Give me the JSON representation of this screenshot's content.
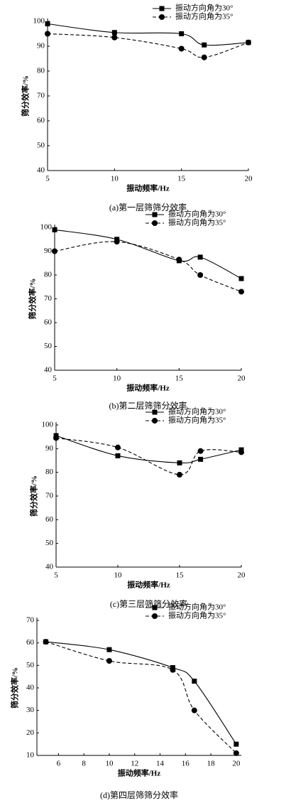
{
  "chart_data": [
    {
      "type": "line",
      "caption": "(a)第一层筛筛分效率",
      "xlabel": "振动频率/Hz",
      "ylabel": "筛分效率/%",
      "x": [
        5,
        10,
        15,
        16.7,
        20
      ],
      "xlim": [
        5,
        20
      ],
      "xticks": [
        5,
        10,
        15,
        20
      ],
      "ylim": [
        40,
        100
      ],
      "yticks": [
        40,
        50,
        60,
        70,
        80,
        90,
        100
      ],
      "legend": "upper right",
      "series": [
        {
          "name": "振动方向角为30°",
          "color": "#000000",
          "line_style": "solid",
          "marker": "square",
          "values": [
            99,
            95.5,
            95,
            90.5,
            91.5
          ]
        },
        {
          "name": "振动方向角为35°",
          "color": "#000000",
          "line_style": "dashed",
          "marker": "circle",
          "values": [
            95,
            93.5,
            89,
            85.5,
            91.5
          ]
        }
      ]
    },
    {
      "type": "line",
      "caption": "(b)第二层筛筛分效率",
      "xlabel": "振动频率/Hz",
      "ylabel": "筛分效率/%",
      "x": [
        5,
        10,
        15,
        16.7,
        20
      ],
      "xlim": [
        5,
        20
      ],
      "xticks": [
        5,
        10,
        15,
        20
      ],
      "ylim": [
        40,
        100
      ],
      "yticks": [
        40,
        50,
        60,
        70,
        80,
        90,
        100
      ],
      "legend": "upper right",
      "series": [
        {
          "name": "振动方向角为30°",
          "color": "#000000",
          "line_style": "solid",
          "marker": "square",
          "values": [
            99,
            95,
            86,
            87.5,
            78.5
          ]
        },
        {
          "name": "振动方向角为35°",
          "color": "#000000",
          "line_style": "dashed",
          "marker": "circle",
          "values": [
            90,
            94,
            86.5,
            80,
            73
          ]
        }
      ]
    },
    {
      "type": "line",
      "caption": "(c)第三层筛筛分效率",
      "xlabel": "振动频率/Hz",
      "ylabel": "筛分效率/%",
      "x": [
        5,
        10,
        15,
        16.7,
        20
      ],
      "xlim": [
        5,
        20
      ],
      "xticks": [
        5,
        10,
        15,
        20
      ],
      "ylim": [
        40,
        100
      ],
      "yticks": [
        40,
        50,
        60,
        70,
        80,
        90,
        100
      ],
      "legend": "upper right",
      "series": [
        {
          "name": "振动方向角为30°",
          "color": "#000000",
          "line_style": "solid",
          "marker": "square",
          "values": [
            95.5,
            87,
            84,
            85.5,
            89.5
          ]
        },
        {
          "name": "振动方向角为35°",
          "color": "#000000",
          "line_style": "dashed",
          "marker": "circle",
          "values": [
            94.5,
            90.5,
            79,
            89,
            88.5
          ]
        }
      ]
    },
    {
      "type": "line",
      "caption": "(d)第四层筛筛分效率",
      "xlabel": "振动频率/Hz",
      "ylabel": "筛分效率/%",
      "x": [
        5,
        10,
        15,
        16.7,
        20
      ],
      "xlim": [
        4.3,
        20.4
      ],
      "xticks": [
        6,
        8,
        10,
        12,
        14,
        16,
        18,
        20
      ],
      "ylim": [
        10,
        70
      ],
      "yticks": [
        10,
        20,
        30,
        40,
        50,
        60,
        70
      ],
      "legend": "upper right",
      "series": [
        {
          "name": "振动方向角为30°",
          "color": "#000000",
          "line_style": "solid",
          "marker": "square",
          "values": [
            60.5,
            57,
            49,
            43,
            15
          ]
        },
        {
          "name": "振动方向角为35°",
          "color": "#000000",
          "line_style": "dashed",
          "marker": "circle",
          "values": [
            60.5,
            52,
            48,
            30,
            11
          ]
        }
      ]
    }
  ]
}
